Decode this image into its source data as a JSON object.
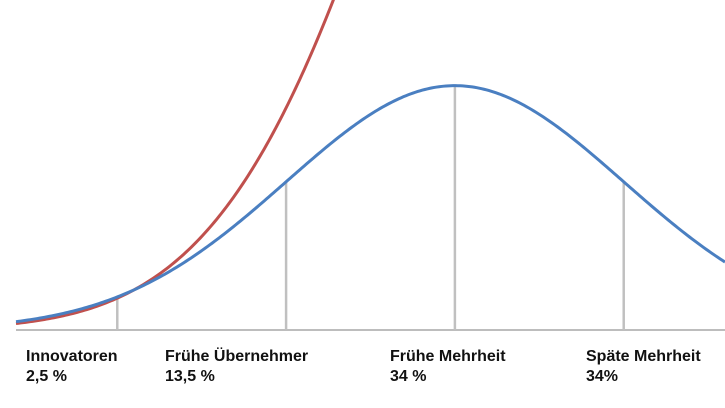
{
  "chart_data": {
    "type": "line",
    "title": "",
    "xlabel": "",
    "ylabel": "",
    "grid": false,
    "legend": "none",
    "series": [
      {
        "key": "normal",
        "color": "#4a7fc1"
      },
      {
        "key": "cumulative",
        "color": "#c0504d"
      }
    ],
    "boundaries_sigma": [
      -2,
      -1,
      0,
      1
    ],
    "x_range_sigma": [
      -2.6,
      1.6
    ],
    "segments": [
      {
        "name": "Innovatoren",
        "share": "2,5 %"
      },
      {
        "name": "Frühe Übernehmer",
        "share": "13,5 %"
      },
      {
        "name": "Frühe Mehrheit",
        "share": "34 %"
      },
      {
        "name": "Späte Mehrheit",
        "share": "34%"
      }
    ],
    "colors": {
      "divider": "#c0c0c0",
      "baseline": "#bdbdbd"
    }
  }
}
